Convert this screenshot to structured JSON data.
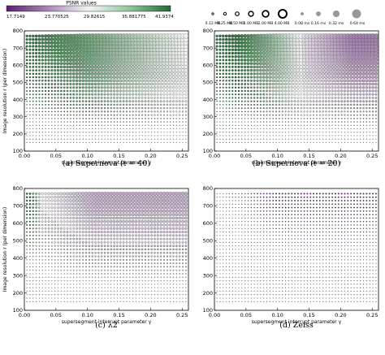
{
  "colorbar": {
    "title": "PSNR values",
    "ticks": [
      "17.7149",
      "23.770525",
      "29.82615",
      "35.881775",
      "41.9374"
    ],
    "colors": [
      "#5b1f6e",
      "#f4f4f4",
      "#1f6b2f"
    ]
  },
  "size_legend": {
    "memory_labels": [
      "0.12 MB",
      "0.25 MB",
      "0.50 MB",
      "1.00 MB",
      "2.00 MB",
      "4.00 MB"
    ],
    "time_labels": [
      "0.08 ms",
      "0.16 ms",
      "0.32 ms",
      "0.64 ms"
    ]
  },
  "chart_data": [
    {
      "type": "scatter",
      "caption": "(a) Supernova (t = 40)",
      "xlabel": "supersegment interrupt parameter γ",
      "ylabel": "Image resolution r (per dimension)",
      "xlim": [
        0.0,
        0.26
      ],
      "ylim": [
        100,
        800
      ],
      "xticks": [
        "0.00",
        "0.05",
        "0.10",
        "0.15",
        "0.20",
        "0.25"
      ],
      "yticks": [
        "100",
        "200",
        "300",
        "400",
        "500",
        "600",
        "700",
        "800"
      ],
      "show_xlabel": true,
      "show_ylabel": true,
      "pattern": {
        "green_extent": 0.24,
        "purple_rows": 0.0,
        "boundary_start": 0.02,
        "size_max": 0.95,
        "curl_cols": 0
      }
    },
    {
      "type": "scatter",
      "caption": "(b) Supernova (t = 20)",
      "xlabel": "supersegment interrupt parameter γ",
      "ylabel": "",
      "xlim": [
        0.0,
        0.26
      ],
      "ylim": [
        100,
        800
      ],
      "xticks": [
        "0.00",
        "0.05",
        "0.10",
        "0.15",
        "0.20",
        "0.25"
      ],
      "yticks": [
        "100",
        "200",
        "300",
        "400",
        "500",
        "600",
        "700",
        "800"
      ],
      "show_xlabel": true,
      "show_ylabel": false,
      "pattern": {
        "green_extent": 0.1,
        "purple_rows": 0.55,
        "boundary_start": 0.04,
        "size_max": 0.95,
        "curl_cols": 10
      }
    },
    {
      "type": "scatter",
      "caption": "(c) λ2",
      "xlabel": "supersegment interrupt parameter γ",
      "ylabel": "Image resolution r (per dimension)",
      "xlim": [
        0.0,
        0.26
      ],
      "ylim": [
        100,
        800
      ],
      "xticks": [
        "0.00",
        "0.05",
        "0.10",
        "0.15",
        "0.20",
        "0.25"
      ],
      "yticks": [
        "100",
        "200",
        "300",
        "400",
        "500",
        "600",
        "700",
        "800"
      ],
      "show_xlabel": true,
      "show_ylabel": true,
      "pattern": {
        "green_extent": 0.02,
        "purple_rows": 0.35,
        "boundary_start": 0.01,
        "size_max": 0.7,
        "curl_cols": 3
      }
    },
    {
      "type": "scatter",
      "caption": "(d) Zeiss",
      "xlabel": "supersegment interrupt parameter γ",
      "ylabel": "",
      "xlim": [
        0.0,
        0.26
      ],
      "ylim": [
        100,
        800
      ],
      "xticks": [
        "0.00",
        "0.05",
        "0.10",
        "0.15",
        "0.20",
        "0.25"
      ],
      "yticks": [
        "100",
        "200",
        "300",
        "400",
        "500",
        "600",
        "700",
        "800"
      ],
      "show_xlabel": true,
      "show_ylabel": false,
      "pattern": {
        "green_extent": 0.0,
        "purple_rows": 1.0,
        "boundary_start": 0.0,
        "size_max": 0.25,
        "curl_cols": 0
      }
    }
  ]
}
